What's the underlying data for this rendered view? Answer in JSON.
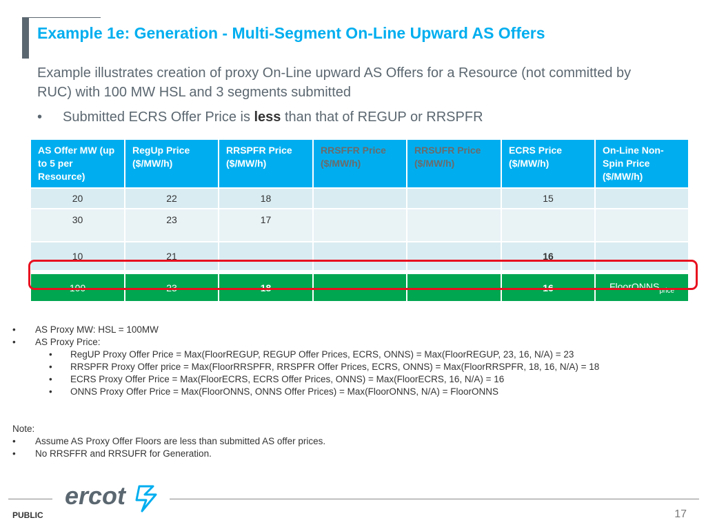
{
  "title": "Example 1e: Generation - Multi-Segment On-Line Upward AS Offers",
  "intro": "Example illustrates creation of proxy On-Line upward AS Offers for a Resource (not committed by RUC) with 100 MW HSL and 3 segments submitted",
  "intro_bullet": {
    "marker": "•",
    "prefix": "Submitted ECRS Offer Price is ",
    "emphasis": "less",
    "suffix": " than that of REGUP or RRSPFR"
  },
  "table": {
    "headers": [
      "AS Offer MW (up to 5 per Resource)",
      "RegUp Price ($/MW/h)",
      "RRSPFR Price ($/MW/h)",
      "RRSFFR Price ($/MW/h)",
      "RRSUFR Price ($/MW/h)",
      "ECRS Price ($/MW/h)",
      "On-Line Non-Spin Price ($/MW/h)"
    ],
    "rows": [
      [
        "20",
        "22",
        "18",
        "",
        "",
        "15",
        ""
      ],
      [
        "30",
        "23",
        "17",
        "",
        "",
        "",
        ""
      ],
      [
        "10",
        "21",
        "",
        "",
        "",
        "16",
        ""
      ]
    ],
    "proxy_row": {
      "mw": "100",
      "regup": "23",
      "rrspfr": "18",
      "rrsffr": "",
      "rrsufr": "",
      "ecrs": "16",
      "onns_main": "FloorONNS",
      "onns_sub": "price"
    }
  },
  "notes": [
    {
      "level": 1,
      "text": "AS Proxy MW: HSL = 100MW"
    },
    {
      "level": 1,
      "text": "AS Proxy Price:"
    },
    {
      "level": 2,
      "text": "RegUP Proxy Offer Price = Max(FloorREGUP, REGUP Offer Prices, ECRS, ONNS) = Max(FloorREGUP, 23, 16, N/A) = 23"
    },
    {
      "level": 2,
      "text": "RRSPFR Proxy Offer price = Max(FloorRRSPFR, RRSPFR Offer Prices, ECRS, ONNS) = Max(FloorRRSPFR, 18, 16, N/A) = 18"
    },
    {
      "level": 2,
      "text": "ECRS Proxy Offer Price = Max(FloorECRS, ECRS Offer Prices, ONNS) = Max(FloorECRS, 16, N/A) = 16"
    },
    {
      "level": 2,
      "text": "ONNS Proxy Offer Price = Max(FloorONNS, ONNS Offer Prices) = Max(FloorONNS, N/A) = FloorONNS"
    }
  ],
  "note_block": {
    "heading": "Note:",
    "items": [
      "Assume AS Proxy Offer Floors are less than submitted AS offer prices.",
      "No RRSFFR and RRSUFR for Generation."
    ]
  },
  "footer": {
    "logo_text": "ercot",
    "classification": "PUBLIC",
    "page_number": "17"
  },
  "colors": {
    "title": "#00aeef",
    "header_bg": "#00aeef",
    "row_light": "#d9ecf2",
    "proxy_row": "#00a650",
    "highlight": "#e8101f"
  }
}
